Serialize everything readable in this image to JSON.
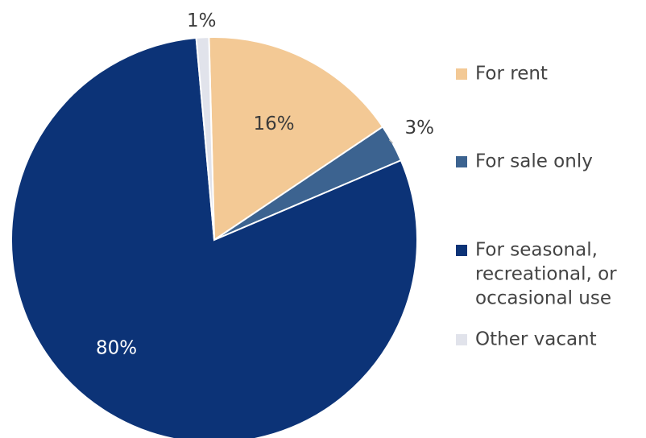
{
  "chart_data": {
    "type": "pie",
    "title": "",
    "start_angle_deg": -1.5,
    "direction": "clockwise",
    "slices": [
      {
        "label": "For rent",
        "value": 16,
        "display": "16%",
        "color": "#F3C995",
        "label_color": "#3a3a3a",
        "legend_lines": [
          "For rent"
        ]
      },
      {
        "label": "For sale only",
        "value": 3,
        "display": "3%",
        "color": "#3C6390",
        "label_color": "#3a3a3a",
        "legend_lines": [
          "For sale only"
        ]
      },
      {
        "label": "For seasonal, recreational, or occasional use",
        "value": 80,
        "display": "80%",
        "color": "#0C3377",
        "label_color": "#ffffff",
        "legend_lines": [
          "For seasonal,",
          "recreational, or",
          "occasional use"
        ]
      },
      {
        "label": "Other vacant",
        "value": 1,
        "display": "1%",
        "color": "#E1E3EB",
        "label_color": "#3a3a3a",
        "legend_lines": [
          "Other vacant"
        ]
      }
    ],
    "legend_position": "right"
  }
}
